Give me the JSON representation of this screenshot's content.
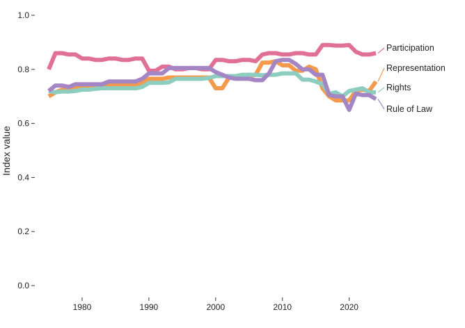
{
  "chart_data": {
    "type": "line",
    "title": "",
    "xlabel": "",
    "ylabel": "Index value",
    "xlim": [
      1975,
      2024
    ],
    "ylim": [
      0,
      1
    ],
    "x_ticks": [
      1980,
      1990,
      2000,
      2010,
      2020
    ],
    "y_ticks": [
      0.0,
      0.2,
      0.4,
      0.6,
      0.8,
      1.0
    ],
    "y_tick_labels": [
      "0.0",
      "0.2",
      "0.4",
      "0.6",
      "0.8",
      "1.0"
    ],
    "grid": false,
    "legend": "direct-labels-right",
    "x": [
      1975,
      1976,
      1977,
      1978,
      1979,
      1980,
      1981,
      1982,
      1983,
      1984,
      1985,
      1986,
      1987,
      1988,
      1989,
      1990,
      1991,
      1992,
      1993,
      1994,
      1995,
      1996,
      1997,
      1998,
      1999,
      2000,
      2001,
      2002,
      2003,
      2004,
      2005,
      2006,
      2007,
      2008,
      2009,
      2010,
      2011,
      2012,
      2013,
      2014,
      2015,
      2016,
      2017,
      2018,
      2019,
      2020,
      2021,
      2022,
      2023,
      2024
    ],
    "series": [
      {
        "name": "Participation",
        "color": "#e07096",
        "values": [
          0.8,
          0.86,
          0.86,
          0.855,
          0.855,
          0.84,
          0.84,
          0.835,
          0.835,
          0.84,
          0.84,
          0.835,
          0.835,
          0.84,
          0.84,
          0.795,
          0.795,
          0.81,
          0.81,
          0.8,
          0.8,
          0.805,
          0.805,
          0.8,
          0.8,
          0.835,
          0.835,
          0.83,
          0.83,
          0.835,
          0.835,
          0.83,
          0.855,
          0.86,
          0.86,
          0.855,
          0.855,
          0.86,
          0.86,
          0.855,
          0.855,
          0.89,
          0.89,
          0.888,
          0.888,
          0.89,
          0.865,
          0.855,
          0.855,
          0.86
        ]
      },
      {
        "name": "Representation",
        "color": "#f39a4d",
        "values": [
          0.7,
          0.715,
          0.725,
          0.73,
          0.735,
          0.74,
          0.74,
          0.74,
          0.74,
          0.745,
          0.745,
          0.745,
          0.745,
          0.745,
          0.75,
          0.765,
          0.765,
          0.765,
          0.77,
          0.77,
          0.77,
          0.77,
          0.77,
          0.77,
          0.77,
          0.73,
          0.73,
          0.77,
          0.775,
          0.775,
          0.775,
          0.78,
          0.825,
          0.825,
          0.83,
          0.815,
          0.815,
          0.795,
          0.795,
          0.81,
          0.8,
          0.73,
          0.7,
          0.685,
          0.685,
          0.685,
          0.72,
          0.725,
          0.72,
          0.755
        ]
      },
      {
        "name": "Rights",
        "color": "#8dcdc0",
        "values": [
          0.72,
          0.715,
          0.718,
          0.718,
          0.72,
          0.725,
          0.725,
          0.728,
          0.73,
          0.73,
          0.73,
          0.73,
          0.73,
          0.73,
          0.735,
          0.75,
          0.75,
          0.75,
          0.752,
          0.765,
          0.765,
          0.765,
          0.765,
          0.765,
          0.768,
          0.775,
          0.775,
          0.775,
          0.775,
          0.78,
          0.78,
          0.78,
          0.778,
          0.78,
          0.78,
          0.785,
          0.785,
          0.785,
          0.762,
          0.762,
          0.755,
          0.745,
          0.71,
          0.715,
          0.7,
          0.72,
          0.725,
          0.73,
          0.715,
          0.715
        ]
      },
      {
        "name": "Rule of Law",
        "color": "#a486c4",
        "values": [
          0.72,
          0.74,
          0.74,
          0.735,
          0.745,
          0.745,
          0.745,
          0.745,
          0.745,
          0.755,
          0.755,
          0.755,
          0.755,
          0.755,
          0.765,
          0.785,
          0.785,
          0.785,
          0.805,
          0.805,
          0.805,
          0.805,
          0.805,
          0.805,
          0.805,
          0.79,
          0.78,
          0.77,
          0.765,
          0.765,
          0.765,
          0.76,
          0.76,
          0.785,
          0.83,
          0.835,
          0.835,
          0.82,
          0.8,
          0.8,
          0.78,
          0.78,
          0.705,
          0.7,
          0.7,
          0.65,
          0.71,
          0.705,
          0.705,
          0.69
        ]
      }
    ]
  }
}
